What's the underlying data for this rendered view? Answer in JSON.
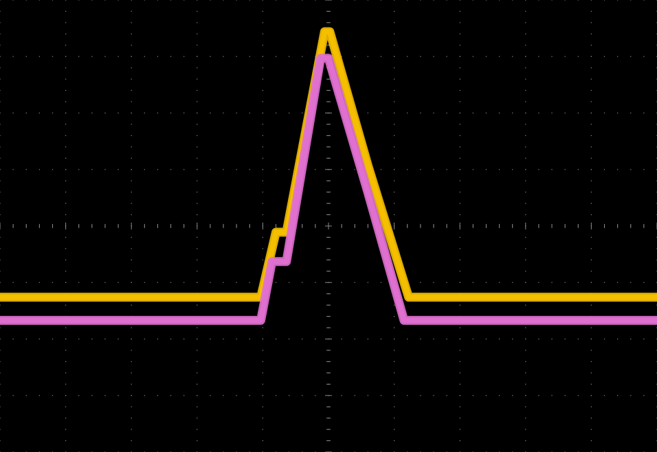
{
  "colors": {
    "background": "#000000",
    "grid": "#8a8a8a",
    "channel_1": "#f5bf00",
    "channel_2": "#e070d0"
  },
  "chart_data": {
    "type": "line",
    "title": "",
    "xlabel": "",
    "ylabel": "",
    "grid": true,
    "xlim": [
      -5,
      5
    ],
    "ylim": [
      -4,
      4
    ],
    "divisions": {
      "x": 10,
      "y": 8
    },
    "minor_ticks_per_division": 5,
    "series": [
      {
        "color": "#f5bf00",
        "x": [
          -5.0,
          -1.03,
          -0.8,
          -0.64,
          -0.64,
          -0.06,
          -0.06,
          -0.02,
          0.02,
          0.02,
          0.6,
          0.6,
          1.22,
          1.3,
          5.0
        ],
        "y": [
          -1.26,
          -1.26,
          -0.11,
          -0.11,
          -0.11,
          3.44,
          3.44,
          3.44,
          3.44,
          3.44,
          1.07,
          1.07,
          -1.26,
          -1.26,
          -1.26
        ]
      },
      {
        "color": "#e070d0",
        "x": [
          -5.0,
          -1.03,
          -0.86,
          -0.64,
          -0.64,
          -0.12,
          -0.12,
          -0.04,
          0.0,
          0.0,
          0.6,
          0.6,
          1.15,
          1.24,
          5.0
        ],
        "y": [
          -1.67,
          -1.67,
          -0.63,
          -0.63,
          -0.63,
          2.97,
          2.97,
          2.97,
          2.97,
          2.97,
          0.59,
          0.59,
          -1.67,
          -1.67,
          -1.67
        ]
      }
    ]
  }
}
